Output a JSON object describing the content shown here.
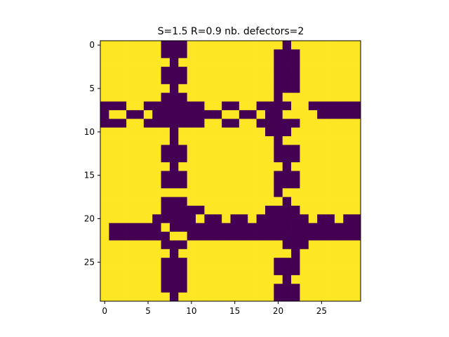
{
  "chart_data": {
    "type": "heatmap",
    "title": "S=1.5 R=0.9 nb. defectors=2",
    "xlabel": "",
    "ylabel": "",
    "xlim": [
      -0.5,
      29.5
    ],
    "ylim": [
      29.5,
      -0.5
    ],
    "x_ticks": [
      0,
      5,
      10,
      15,
      20,
      25
    ],
    "y_ticks": [
      0,
      5,
      10,
      15,
      20,
      25
    ],
    "grid": false,
    "legend": "none",
    "colormap": "viridis",
    "colors": {
      "cooperator": "#fde725",
      "defector": "#440154"
    },
    "values_legend": {
      "0": "defector",
      "1": "cooperator"
    },
    "matrix": [
      "111111100011111111111011111111",
      "111111100011111111110001111111",
      "111111110111111111110001111111",
      "111111100011111111110001111111",
      "111111100011111111110001111111",
      "111111110111111111110001111111",
      "111111100011111111110111111111",
      "000110000000110011000011000000",
      "011001000000001100100111100000",
      "000110000000110011000001111111",
      "111111110111111111100011111111",
      "111111110111111111110111111111",
      "111111100011111111110001111111",
      "111111100011111111110001111111",
      "111111110111111111111011111111",
      "111111100011111111110001111111",
      "111111100011111111110001111111",
      "111111111111111111110111111111",
      "111111100011111111111011111111",
      "111111100000111111100001111111",
      "111111000001001001000000100100",
      "100000010000000000000000000000",
      "100000001100000000000000000000",
      "111111100011111111111000111111",
      "111111110111111111111101111111",
      "111111100011111111110001111111",
      "111111100011111111110001111111",
      "111111100011111111111011111111",
      "111111100011111111110001111111",
      "111111110111111111110001111111"
    ]
  }
}
